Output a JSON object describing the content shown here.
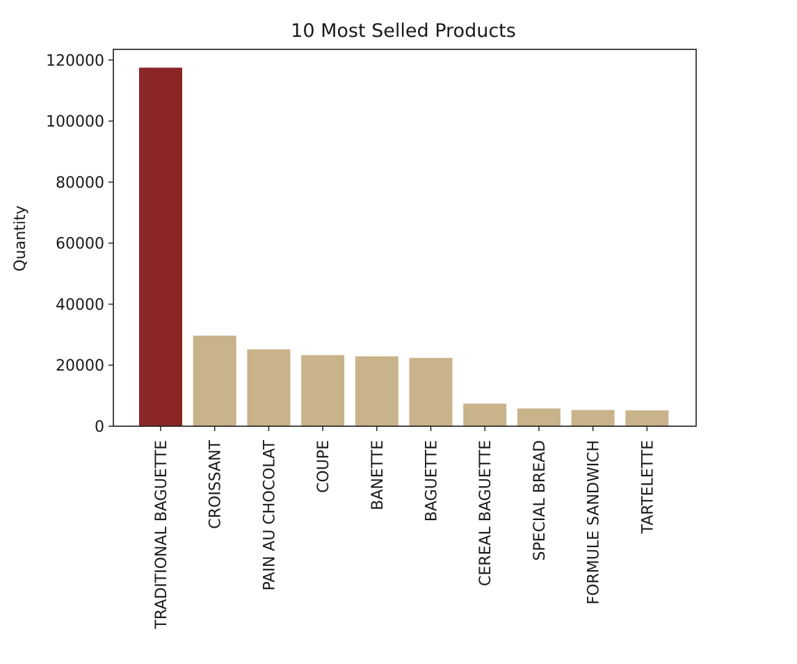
{
  "chart_data": {
    "type": "bar",
    "title": "10 Most Selled Products",
    "xlabel": "",
    "ylabel": "Quantity",
    "ylim": [
      0,
      123500
    ],
    "yticks": [
      0,
      20000,
      40000,
      60000,
      80000,
      100000,
      120000
    ],
    "ytick_labels": [
      "0",
      "20000",
      "40000",
      "60000",
      "80000",
      "100000",
      "120000"
    ],
    "categories": [
      "TRADITIONAL BAGUETTE",
      "CROISSANT",
      "PAIN AU CHOCOLAT",
      "COUPE",
      "BANETTE",
      "BAGUETTE",
      "CEREAL BAGUETTE",
      "SPECIAL BREAD",
      "FORMULE SANDWICH",
      "TARTELETTE"
    ],
    "values": [
      117500,
      29700,
      25200,
      23300,
      22900,
      22400,
      7400,
      5800,
      5300,
      5200
    ],
    "colors": {
      "highlight": "#8b2626",
      "default": "#c9b38b"
    },
    "highlight_index": 0,
    "grid": false,
    "legend": "none"
  }
}
